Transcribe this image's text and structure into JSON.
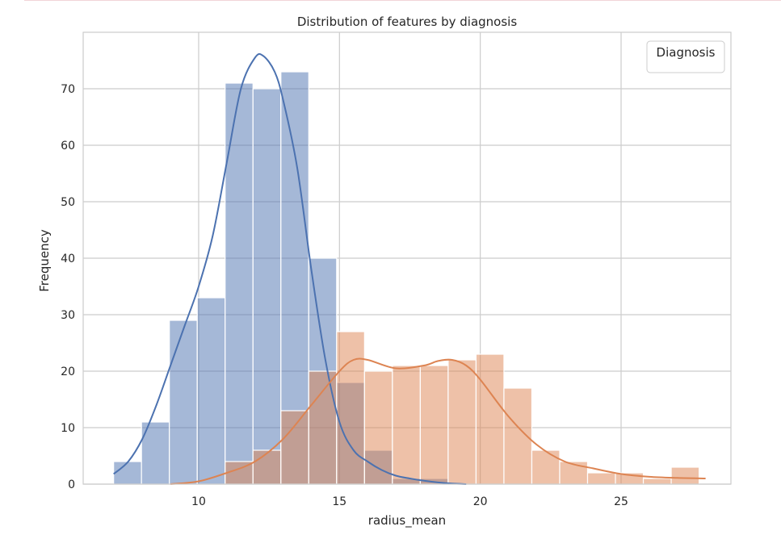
{
  "colors": {
    "benign_fill": "#4c72b0",
    "malignant_fill": "#dd8452",
    "grid": "#cccccc",
    "frame": "#cccccc"
  },
  "chart_data": {
    "type": "bar",
    "subtype": "histogram-with-kde",
    "title": "Distribution of features by diagnosis",
    "xlabel": "radius_mean",
    "ylabel": "Frequency",
    "xlim": [
      5.9,
      28.9
    ],
    "ylim": [
      0,
      80
    ],
    "xticks": [
      10,
      15,
      20,
      25
    ],
    "yticks": [
      0,
      10,
      20,
      30,
      40,
      50,
      60,
      70
    ],
    "grid": true,
    "legend": {
      "title": "Diagnosis",
      "placement": "top-right",
      "entries": []
    },
    "bin_edges": [
      6.98,
      7.97,
      8.96,
      9.95,
      10.94,
      11.93,
      12.92,
      13.91,
      14.9,
      15.89,
      16.88,
      17.87,
      18.86,
      19.85,
      20.84,
      21.83,
      22.82,
      23.81,
      24.8,
      25.79,
      26.78,
      27.77
    ],
    "series": [
      {
        "key": "benign",
        "color": "#4c72b0",
        "counts": [
          4,
          11,
          29,
          33,
          71,
          70,
          73,
          40,
          18,
          6,
          1,
          1,
          0,
          0,
          0,
          0,
          0,
          0,
          0,
          0,
          0
        ],
        "kde": {
          "x": [
            6.98,
            7.5,
            8.0,
            8.5,
            9.0,
            9.5,
            10.0,
            10.5,
            11.0,
            11.5,
            12.0,
            12.3,
            12.7,
            13.0,
            13.5,
            14.0,
            14.5,
            15.0,
            15.5,
            16.0,
            16.5,
            17.0,
            17.5,
            18.0,
            18.5,
            19.0,
            19.5
          ],
          "y": [
            1.8,
            4,
            8,
            14,
            21,
            28,
            35,
            44,
            57,
            70,
            75.5,
            75.8,
            73,
            68,
            56,
            38,
            22,
            11,
            6,
            4,
            2.5,
            1.5,
            1,
            0.6,
            0.3,
            0.1,
            0
          ]
        }
      },
      {
        "key": "malignant",
        "color": "#dd8452",
        "counts": [
          0,
          0,
          0,
          0,
          4,
          6,
          13,
          20,
          27,
          20,
          21,
          21,
          22,
          23,
          17,
          6,
          4,
          2,
          2,
          1,
          3
        ],
        "kde": {
          "x": [
            9.0,
            10.0,
            11.0,
            12.0,
            13.0,
            14.0,
            15.0,
            15.5,
            16.0,
            17.0,
            18.0,
            18.5,
            19.0,
            19.5,
            20.0,
            21.0,
            22.0,
            23.0,
            24.0,
            25.0,
            26.0,
            27.0,
            28.0
          ],
          "y": [
            0,
            0.5,
            2,
            4,
            8,
            14,
            20,
            22,
            22,
            20.5,
            21,
            21.8,
            22,
            21,
            18.5,
            12,
            7,
            4,
            2.8,
            1.8,
            1.3,
            1.1,
            1.0
          ]
        }
      }
    ]
  }
}
